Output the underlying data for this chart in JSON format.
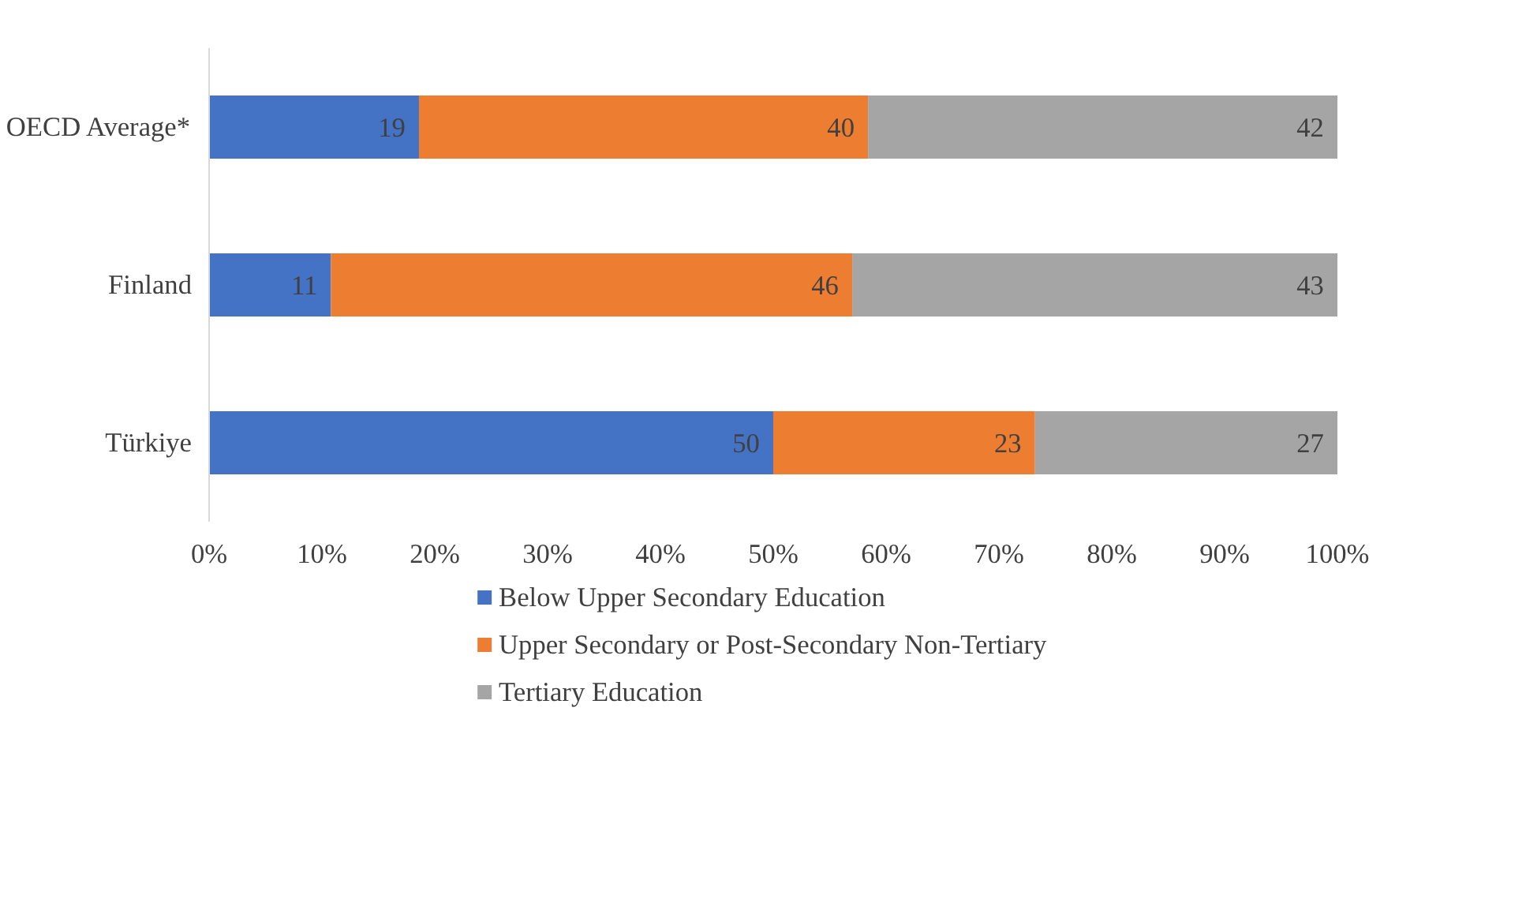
{
  "chart_data": {
    "type": "bar",
    "orientation": "horizontal",
    "stacked": true,
    "categories": [
      "OECD Average*",
      "Finland",
      "Türkiye"
    ],
    "series": [
      {
        "name": "Below Upper Secondary Education",
        "color": "#4472c4",
        "values": [
          18.6,
          10.8,
          50.0
        ],
        "value_labels": [
          "19",
          "11",
          "50"
        ]
      },
      {
        "name": "Upper Secondary or Post-Secondary Non-Tertiary",
        "color": "#ed7d31",
        "values": [
          39.8,
          46.2,
          23.2
        ],
        "value_labels": [
          "40",
          "46",
          "23"
        ]
      },
      {
        "name": "Tertiary Education",
        "color": "#a5a5a5",
        "values": [
          41.6,
          43.0,
          26.8
        ],
        "value_labels": [
          "42",
          "43",
          "27"
        ]
      }
    ],
    "xlim": [
      0,
      100
    ],
    "xticks": [
      {
        "value": 0,
        "label": "0%"
      },
      {
        "value": 10,
        "label": "10%"
      },
      {
        "value": 20,
        "label": "20%"
      },
      {
        "value": 30,
        "label": "30%"
      },
      {
        "value": 40,
        "label": "40%"
      },
      {
        "value": 50,
        "label": "50%"
      },
      {
        "value": 60,
        "label": "60%"
      },
      {
        "value": 70,
        "label": "70%"
      },
      {
        "value": 80,
        "label": "80%"
      },
      {
        "value": 90,
        "label": "90%"
      },
      {
        "value": 100,
        "label": "100%"
      }
    ],
    "grid": false,
    "legend": "bottom"
  }
}
